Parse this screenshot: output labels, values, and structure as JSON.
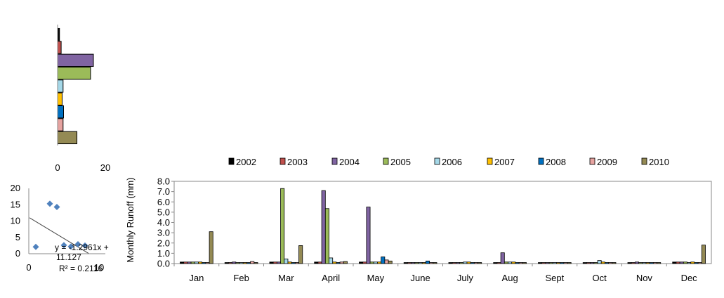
{
  "chart_data": [
    {
      "type": "bar",
      "orientation": "horizontal",
      "categories": [
        "2002",
        "2003",
        "2004",
        "2005",
        "2006",
        "2007",
        "2008",
        "2009",
        "2010"
      ],
      "values": [
        0.8,
        1.5,
        15.0,
        13.8,
        2.3,
        1.9,
        2.5,
        2.3,
        8.1
      ],
      "xlim": [
        0,
        20
      ],
      "xticks": [
        "0",
        "20"
      ],
      "colors": [
        "#000000",
        "#c0504d",
        "#8064a2",
        "#9bbb59",
        "#a5d8e8",
        "#ffc000",
        "#0070c0",
        "#e6a3a0",
        "#948a54"
      ]
    },
    {
      "type": "scatter",
      "points": [
        [
          1,
          2.1
        ],
        [
          3,
          15.3
        ],
        [
          4,
          14.3
        ],
        [
          5,
          2.6
        ],
        [
          6,
          2.2
        ],
        [
          7,
          2.9
        ],
        [
          8,
          2.5
        ]
      ],
      "trendline": {
        "slope": -1.2961,
        "intercept": 11.127
      },
      "equation_text": "y = -1.2961x + 11.127",
      "r2_text": "R² = 0.2116",
      "ylim": [
        0,
        20
      ],
      "yticks": [
        "0",
        "5",
        "10",
        "15",
        "20"
      ],
      "xticks": [
        "0",
        "10"
      ],
      "xlim": [
        0,
        10
      ],
      "marker_color": "#4f81bd"
    },
    {
      "type": "bar",
      "title": "",
      "ylabel": "Monthly  Runoff (mm)",
      "ylim": [
        0,
        8
      ],
      "yticks": [
        "0.0",
        "1.0",
        "2.0",
        "3.0",
        "4.0",
        "5.0",
        "6.0",
        "7.0",
        "8.0"
      ],
      "categories": [
        "Jan",
        "Feb",
        "Mar",
        "April",
        "May",
        "June",
        "July",
        "Aug",
        "Sept",
        "Oct",
        "Nov",
        "Dec"
      ],
      "legend_position": "top",
      "series": [
        {
          "name": "2002",
          "color": "#000000",
          "values": [
            0.15,
            0.1,
            0.15,
            0.15,
            0.15,
            0.1,
            0.1,
            0.1,
            0.1,
            0.1,
            0.1,
            0.15
          ]
        },
        {
          "name": "2003",
          "color": "#c0504d",
          "values": [
            0.15,
            0.1,
            0.15,
            0.15,
            0.15,
            0.1,
            0.1,
            0.1,
            0.1,
            0.1,
            0.1,
            0.15
          ]
        },
        {
          "name": "2004",
          "color": "#8064a2",
          "values": [
            0.15,
            0.15,
            0.15,
            7.1,
            5.5,
            0.1,
            0.1,
            1.05,
            0.1,
            0.1,
            0.15,
            0.15
          ]
        },
        {
          "name": "2005",
          "color": "#9bbb59",
          "values": [
            0.15,
            0.1,
            7.3,
            5.35,
            0.15,
            0.1,
            0.1,
            0.15,
            0.1,
            0.1,
            0.1,
            0.15
          ]
        },
        {
          "name": "2006",
          "color": "#a5d8e8",
          "values": [
            0.15,
            0.1,
            0.45,
            0.55,
            0.15,
            0.1,
            0.15,
            0.15,
            0.1,
            0.3,
            0.1,
            0.1
          ]
        },
        {
          "name": "2007",
          "color": "#ffc000",
          "values": [
            0.15,
            0.1,
            0.15,
            0.15,
            0.15,
            0.1,
            0.15,
            0.15,
            0.1,
            0.15,
            0.1,
            0.15
          ]
        },
        {
          "name": "2008",
          "color": "#0070c0",
          "values": [
            0.1,
            0.1,
            0.1,
            0.1,
            0.65,
            0.25,
            0.1,
            0.1,
            0.1,
            0.1,
            0.1,
            0.1
          ]
        },
        {
          "name": "2009",
          "color": "#e6a3a0",
          "values": [
            0.1,
            0.2,
            0.1,
            0.15,
            0.35,
            0.1,
            0.1,
            0.1,
            0.1,
            0.1,
            0.1,
            0.1
          ]
        },
        {
          "name": "2010",
          "color": "#948a54",
          "values": [
            3.1,
            0.1,
            1.75,
            0.2,
            0.25,
            0.1,
            0.1,
            0.1,
            0.1,
            0.1,
            0.1,
            1.8
          ]
        }
      ]
    }
  ]
}
